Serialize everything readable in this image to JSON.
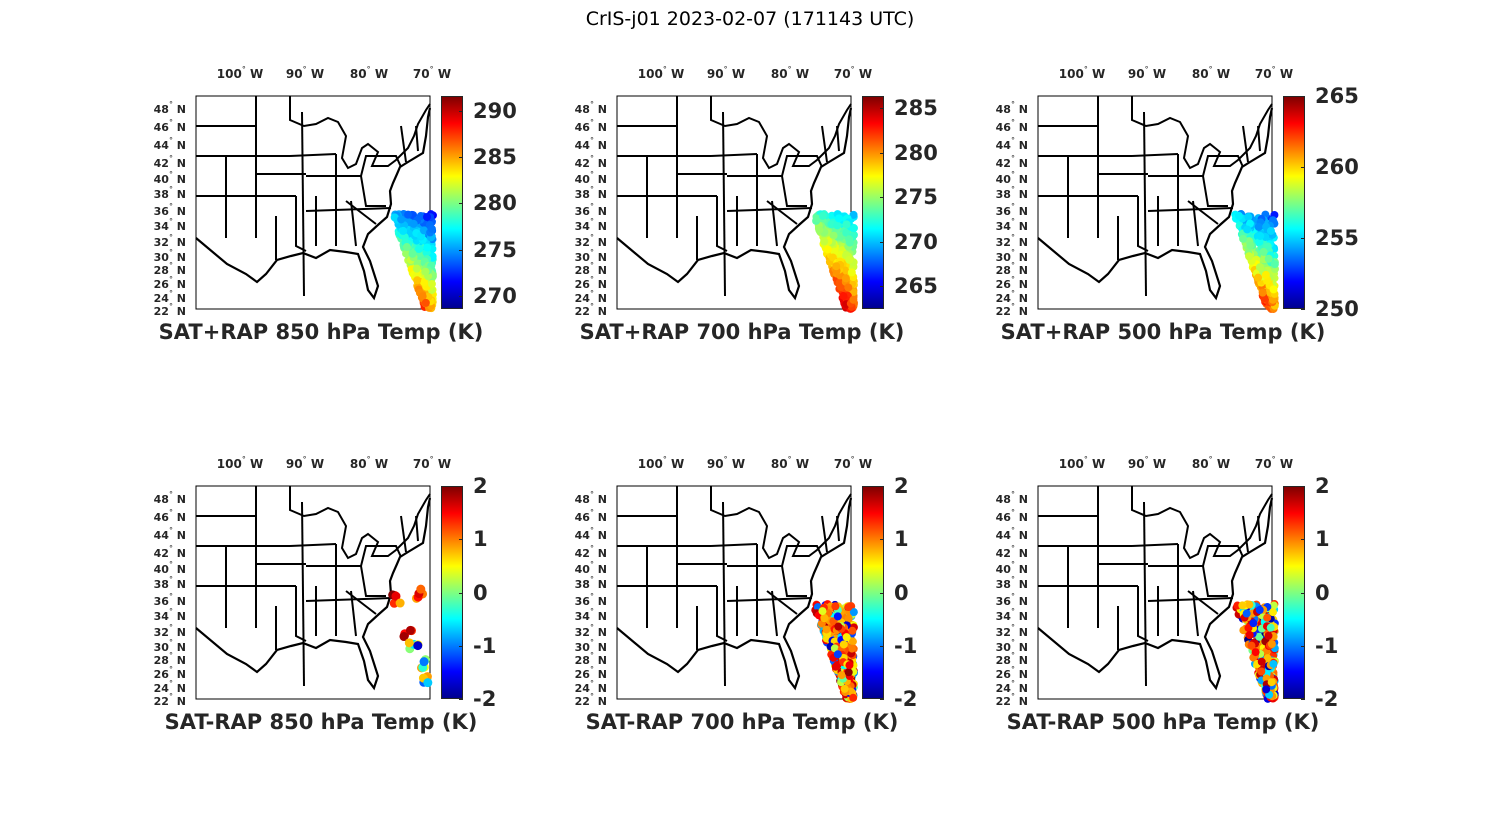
{
  "figure_title": "CrIS-j01 2023-02-07 (171143 UTC)",
  "lat_labels": [
    "48",
    "46",
    "44",
    "42",
    "40",
    "38",
    "36",
    "34",
    "32",
    "30",
    "28",
    "26",
    "24",
    "22"
  ],
  "lat_suffix": "N",
  "lon_labels": [
    "100",
    "90",
    "80",
    "70"
  ],
  "lon_suffix": "W",
  "degree_symbol": "°",
  "colormap": "jet",
  "panels": [
    {
      "title": "SAT+RAP 850 hPa Temp (K)",
      "clim": [
        268.6,
        291.6
      ],
      "ticks": [
        "270",
        "275",
        "280",
        "285",
        "290"
      ],
      "kind": "full",
      "swath_value_range": [
        274,
        288
      ]
    },
    {
      "title": "SAT+RAP 700 hPa Temp (K)",
      "clim": [
        262.4,
        286.4
      ],
      "ticks": [
        "265",
        "270",
        "275",
        "280",
        "285"
      ],
      "kind": "full",
      "swath_value_range": [
        272,
        285
      ]
    },
    {
      "title": "SAT+RAP 500 hPa Temp (K)",
      "clim": [
        250,
        265
      ],
      "ticks": [
        "250",
        "255",
        "260",
        "265"
      ],
      "kind": "full",
      "swath_value_range": [
        254,
        263
      ]
    },
    {
      "title": "SAT-RAP 850 hPa Temp (K)",
      "clim": [
        -2,
        2
      ],
      "ticks": [
        "-2",
        "-1",
        "0",
        "1",
        "2"
      ],
      "kind": "sparse",
      "swath_value_range": [
        -2,
        2
      ]
    },
    {
      "title": "SAT-RAP 700 hPa Temp (K)",
      "clim": [
        -2,
        2
      ],
      "ticks": [
        "-2",
        "-1",
        "0",
        "1",
        "2"
      ],
      "kind": "full",
      "swath_value_range": [
        -2,
        2
      ]
    },
    {
      "title": "SAT-RAP 500 hPa Temp (K)",
      "clim": [
        -2,
        2
      ],
      "ticks": [
        "-2",
        "-1",
        "0",
        "1",
        "2"
      ],
      "kind": "full",
      "swath_value_range": [
        -2,
        2
      ]
    }
  ]
}
